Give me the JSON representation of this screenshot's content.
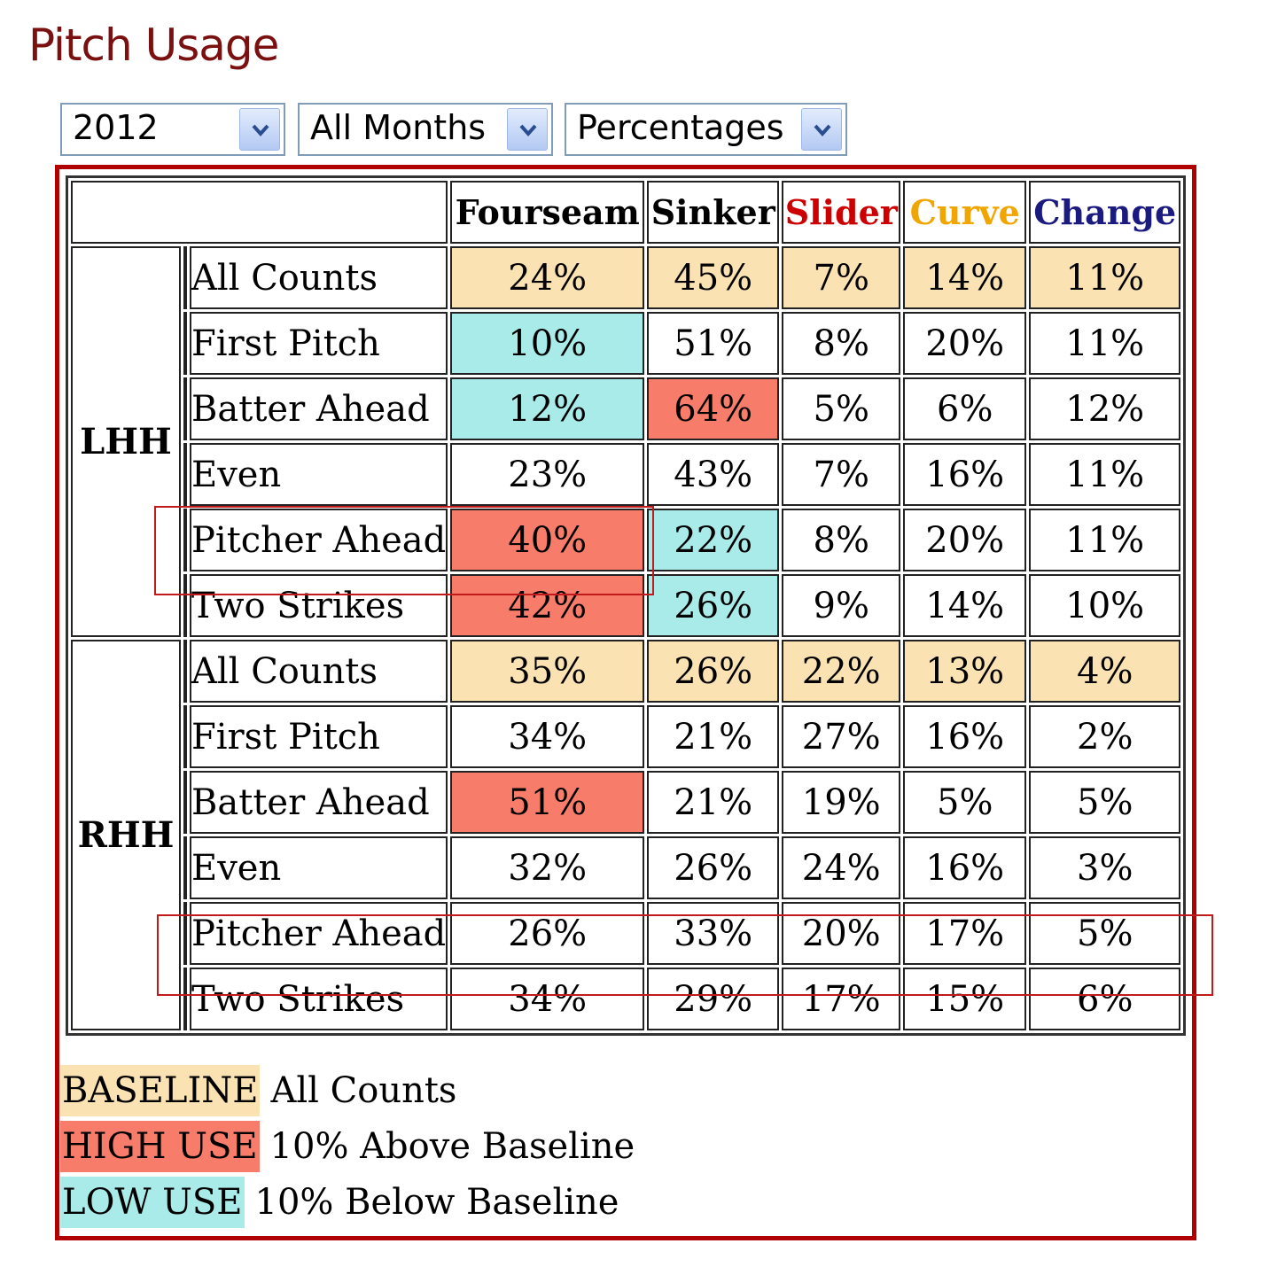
{
  "title": "Pitch Usage",
  "filters": {
    "year": "2012",
    "months": "All Months",
    "mode": "Percentages"
  },
  "colors": {
    "title": "#7b1010",
    "frame": "#b00000",
    "baseline": "#fbe2b3",
    "high": "#f77c6a",
    "low": "#a9ebe8",
    "fourseam": "#000000",
    "sinker": "#000000",
    "slider": "#cc0000",
    "curve": "#f0a500",
    "change": "#1a1a80"
  },
  "table": {
    "columns": [
      "Fourseam",
      "Sinker",
      "Slider",
      "Curve",
      "Change"
    ],
    "groups": [
      {
        "name": "LHH",
        "rows": [
          {
            "label": "All Counts",
            "values": [
              "24%",
              "45%",
              "7%",
              "14%",
              "11%"
            ],
            "states": [
              "baseline",
              "baseline",
              "baseline",
              "baseline",
              "baseline"
            ]
          },
          {
            "label": "First Pitch",
            "values": [
              "10%",
              "51%",
              "8%",
              "20%",
              "11%"
            ],
            "states": [
              "low",
              "",
              "",
              "",
              ""
            ]
          },
          {
            "label": "Batter Ahead",
            "values": [
              "12%",
              "64%",
              "5%",
              "6%",
              "12%"
            ],
            "states": [
              "low",
              "high",
              "",
              "",
              ""
            ]
          },
          {
            "label": "Even",
            "values": [
              "23%",
              "43%",
              "7%",
              "16%",
              "11%"
            ],
            "states": [
              "",
              "",
              "",
              "",
              ""
            ]
          },
          {
            "label": "Pitcher Ahead",
            "values": [
              "40%",
              "22%",
              "8%",
              "20%",
              "11%"
            ],
            "states": [
              "high",
              "low",
              "",
              "",
              ""
            ]
          },
          {
            "label": "Two Strikes",
            "values": [
              "42%",
              "26%",
              "9%",
              "14%",
              "10%"
            ],
            "states": [
              "high",
              "low",
              "",
              "",
              ""
            ]
          }
        ]
      },
      {
        "name": "RHH",
        "rows": [
          {
            "label": "All Counts",
            "values": [
              "35%",
              "26%",
              "22%",
              "13%",
              "4%"
            ],
            "states": [
              "baseline",
              "baseline",
              "baseline",
              "baseline",
              "baseline"
            ]
          },
          {
            "label": "First Pitch",
            "values": [
              "34%",
              "21%",
              "27%",
              "16%",
              "2%"
            ],
            "states": [
              "",
              "",
              "",
              "",
              ""
            ]
          },
          {
            "label": "Batter Ahead",
            "values": [
              "51%",
              "21%",
              "19%",
              "5%",
              "5%"
            ],
            "states": [
              "high",
              "",
              "",
              "",
              ""
            ]
          },
          {
            "label": "Even",
            "values": [
              "32%",
              "26%",
              "24%",
              "16%",
              "3%"
            ],
            "states": [
              "",
              "",
              "",
              "",
              ""
            ]
          },
          {
            "label": "Pitcher Ahead",
            "values": [
              "26%",
              "33%",
              "20%",
              "17%",
              "5%"
            ],
            "states": [
              "",
              "",
              "",
              "",
              ""
            ]
          },
          {
            "label": "Two Strikes",
            "values": [
              "34%",
              "29%",
              "17%",
              "15%",
              "6%"
            ],
            "states": [
              "",
              "",
              "",
              "",
              ""
            ]
          }
        ]
      }
    ]
  },
  "legend": [
    {
      "key": "BASELINE",
      "text": "All Counts",
      "state": "baseline"
    },
    {
      "key": "HIGH USE",
      "text": "10% Above Baseline",
      "state": "high"
    },
    {
      "key": "LOW USE",
      "text": "10% Below Baseline",
      "state": "low"
    }
  ]
}
